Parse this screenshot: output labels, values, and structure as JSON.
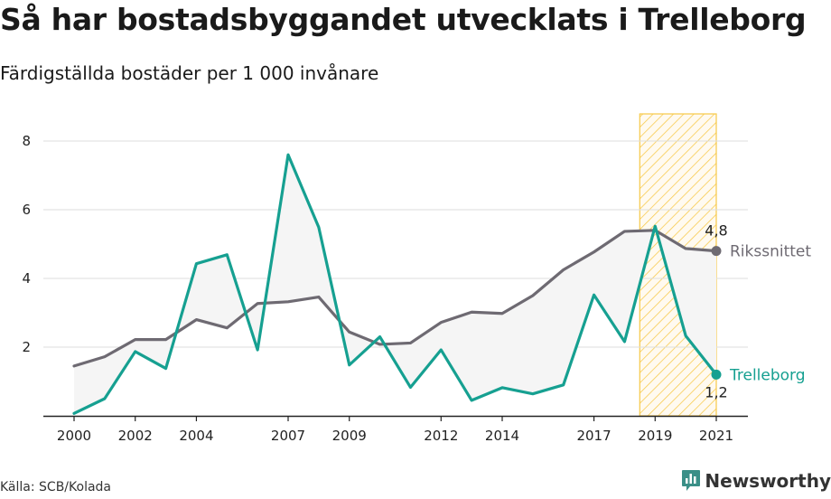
{
  "title": "Så har bostadsbyggandet utvecklats i Trelleborg",
  "subtitle": "Färdigställda bostäder per 1 000 invånare",
  "source": "Källa: SCB/Kolada",
  "brand": {
    "name": "Newsworthy",
    "icon": "newsworthy-logo-icon"
  },
  "colors": {
    "local": "#16a091",
    "national": "#6e6a72",
    "highlight": "#f7c948",
    "fill": "#f5f5f5",
    "grid": "#dddddd"
  },
  "chart_data": {
    "type": "line",
    "x": [
      2000,
      2001,
      2002,
      2003,
      2004,
      2005,
      2006,
      2007,
      2008,
      2009,
      2010,
      2011,
      2012,
      2013,
      2014,
      2015,
      2016,
      2017,
      2018,
      2019,
      2020,
      2021
    ],
    "x_tick_labels": [
      "2000",
      "2002",
      "2004",
      "2007",
      "2009",
      "2012",
      "2014",
      "2017",
      "2019",
      "2021"
    ],
    "y_tick_labels": [
      "2",
      "4",
      "6",
      "8"
    ],
    "ylim": [
      0,
      8.8
    ],
    "grid": true,
    "highlight_range": [
      2019,
      2021
    ],
    "series": [
      {
        "name": "Rikssnittet",
        "color": "#6e6a72",
        "values": [
          1.45,
          1.72,
          2.22,
          2.22,
          2.8,
          2.56,
          3.27,
          3.32,
          3.46,
          2.44,
          2.08,
          2.12,
          2.72,
          3.02,
          2.98,
          3.5,
          4.25,
          4.77,
          5.37,
          5.4,
          4.87,
          4.8
        ],
        "end_label": "4,8"
      },
      {
        "name": "Trelleborg",
        "color": "#16a091",
        "values": [
          0.07,
          0.5,
          1.87,
          1.38,
          4.43,
          4.69,
          1.92,
          7.6,
          5.49,
          1.48,
          2.3,
          0.83,
          1.92,
          0.45,
          0.82,
          0.64,
          0.9,
          3.52,
          2.16,
          5.52,
          2.33,
          1.2
        ],
        "end_label": "1,2"
      }
    ]
  }
}
